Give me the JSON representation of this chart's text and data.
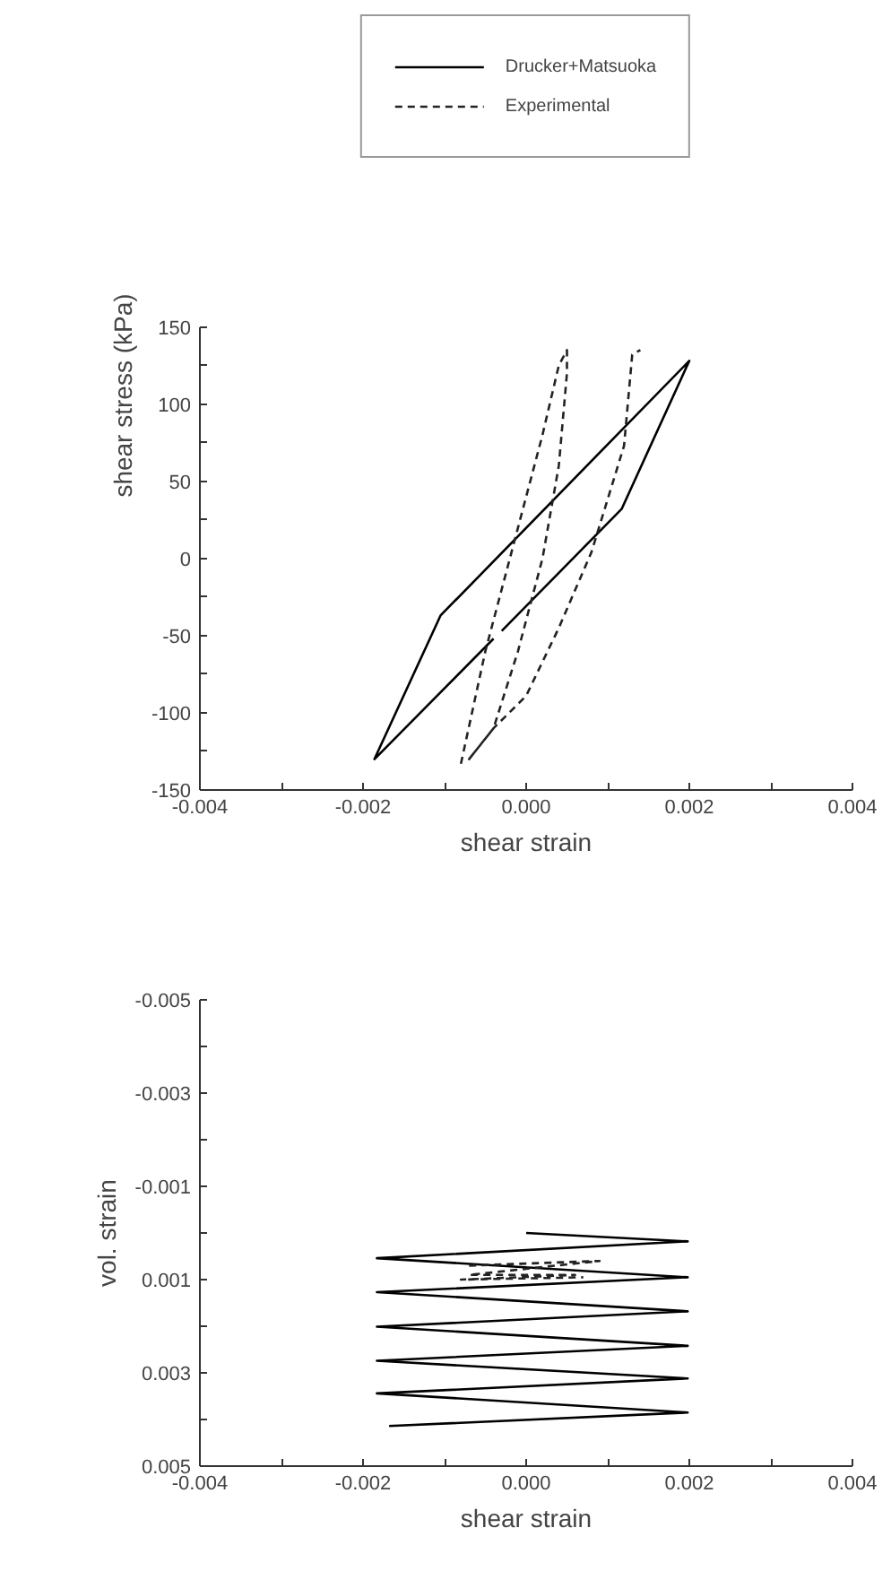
{
  "chart_data": [
    {
      "type": "line",
      "xlabel": "shear strain",
      "ylabel": "shear stress (kPa)",
      "legend": "top",
      "grid": false,
      "marker": "none",
      "xlim": [
        -0.004,
        0.004
      ],
      "ylim": [
        -150,
        150
      ],
      "xticks": [
        {
          "value": -0.004,
          "label": "-0.004"
        },
        {
          "value": -0.003,
          "label": null
        },
        {
          "value": -0.002,
          "label": "-0.002"
        },
        {
          "value": -0.001,
          "label": null
        },
        {
          "value": 0,
          "label": "0.000"
        },
        {
          "value": 0.001,
          "label": null
        },
        {
          "value": 0.002,
          "label": "0.002"
        },
        {
          "value": 0.003,
          "label": null
        },
        {
          "value": 0.004,
          "label": "0.004"
        }
      ],
      "yticks": [
        -150,
        {
          "value": -125,
          "label": null
        },
        -100,
        {
          "value": -75,
          "label": null
        },
        -50,
        {
          "value": -25,
          "label": null
        },
        0,
        {
          "value": 25,
          "label": null
        },
        50,
        {
          "value": 75,
          "label": null
        },
        100,
        {
          "value": 125,
          "label": null
        },
        150
      ],
      "series": [
        {
          "name": "Drucker+Matsuoka",
          "color": "#000000",
          "line_style": "solid",
          "x": [
            -0.0003,
            0.00117,
            0.002,
            -0.00105,
            -0.00186,
            -0.0004
          ],
          "values": [
            -47,
            32,
            128,
            -37,
            -130,
            -52
          ]
        },
        {
          "name": "Experimental",
          "color": "#222222",
          "line_style": "dashed",
          "x": [
            -0.0008,
            -0.0005,
            -0.0001,
            0.0002,
            0.0004,
            0.0005,
            0.0005,
            0.0004,
            0.0002,
            -0.0001,
            -0.0004,
            -0.0007,
            -0.0004,
            0.0,
            0.0004,
            0.0008,
            0.0012,
            0.0013,
            0.0014
          ],
          "values": [
            -133,
            -60,
            20,
            80,
            125,
            135,
            120,
            60,
            0,
            -60,
            -110,
            -130,
            -110,
            -89,
            -45,
            4,
            73,
            132,
            135
          ]
        }
      ]
    },
    {
      "type": "line",
      "xlabel": "shear strain",
      "ylabel": "vol. strain",
      "grid": false,
      "marker": "none",
      "xlim": [
        -0.004,
        0.004
      ],
      "ylim": [
        0.005,
        -0.005
      ],
      "xticks": [
        {
          "value": -0.004,
          "label": "-0.004"
        },
        {
          "value": -0.003,
          "label": null
        },
        {
          "value": -0.002,
          "label": "-0.002"
        },
        {
          "value": -0.001,
          "label": null
        },
        {
          "value": 0,
          "label": "0.000"
        },
        {
          "value": 0.001,
          "label": null
        },
        {
          "value": 0.002,
          "label": "0.002"
        },
        {
          "value": 0.003,
          "label": null
        },
        {
          "value": 0.004,
          "label": "0.004"
        }
      ],
      "yticks": [
        -0.005,
        {
          "value": -0.004,
          "label": null
        },
        -0.003,
        {
          "value": -0.002,
          "label": null
        },
        -0.001,
        {
          "value": 0,
          "label": null
        },
        0.001,
        {
          "value": 0.002,
          "label": null
        },
        0.003,
        {
          "value": 0.004,
          "label": null
        },
        0.005
      ],
      "series": [
        {
          "color": "#000000",
          "line_style": "solid",
          "x": [
            0.0,
            0.00198,
            -0.00183,
            0.00198,
            -0.00183,
            0.00198,
            -0.00183,
            0.00198,
            -0.00183,
            0.00198,
            -0.00183,
            0.00198,
            -0.00168
          ],
          "values": [
            0.0,
            0.00018,
            0.00054,
            0.00095,
            0.00127,
            0.00168,
            0.00201,
            0.00242,
            0.00274,
            0.00312,
            0.00344,
            0.00385,
            0.00414
          ]
        },
        {
          "color": "#222222",
          "line_style": "dashed",
          "x": [
            -0.0007,
            0.0009,
            -0.0007,
            0.0006,
            -0.0008,
            0.0007
          ],
          "values": [
            0.0007,
            0.0006,
            0.0009,
            0.0009,
            0.001,
            0.00095
          ]
        }
      ]
    }
  ]
}
